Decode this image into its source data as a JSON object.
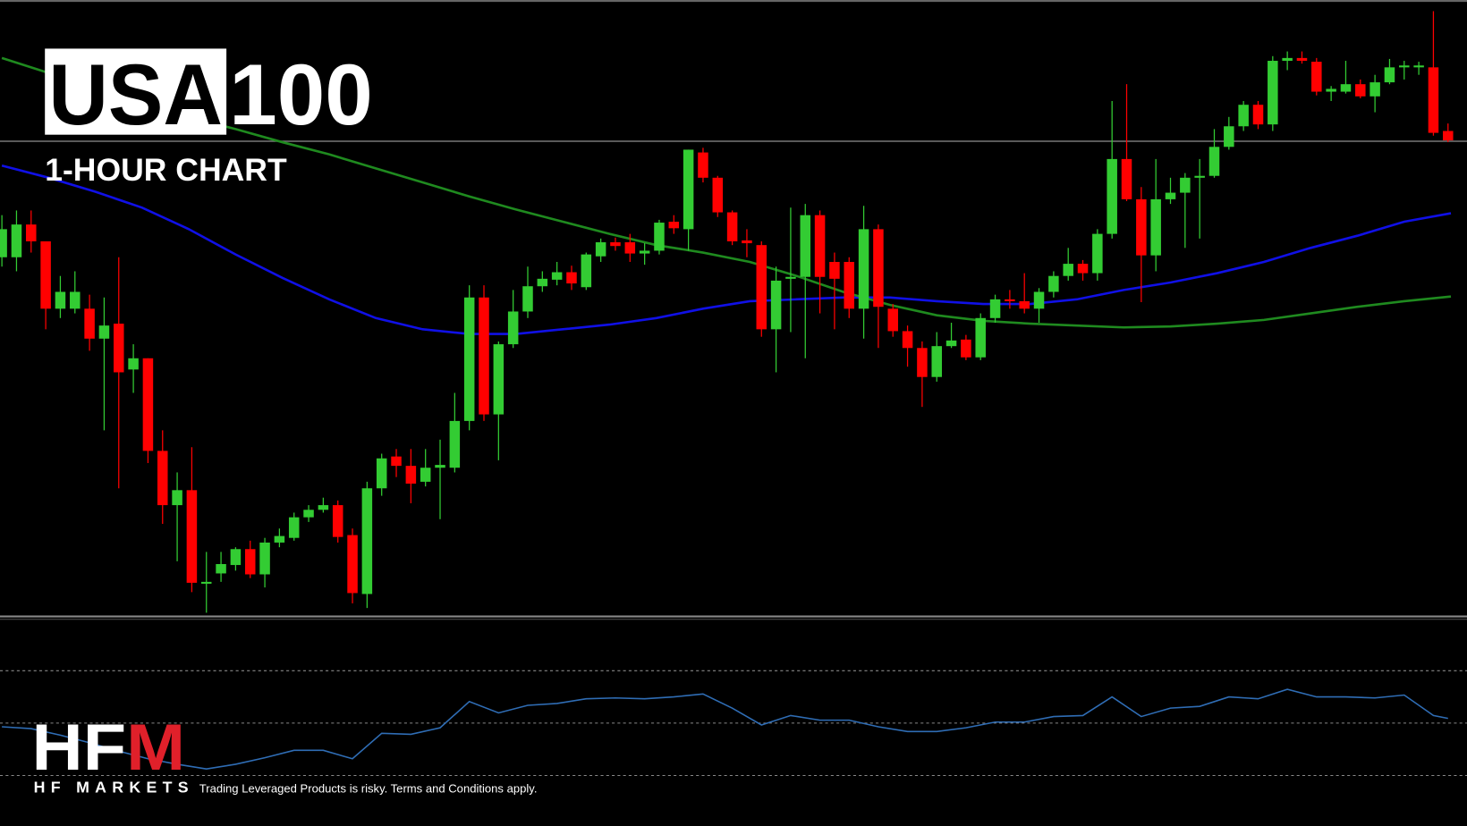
{
  "chart_data": [
    {
      "type": "candlestick",
      "title": "USA",
      "title_suffix": "100",
      "subtitle": "1-HOUR CHART",
      "xlim": [
        -0.13,
        100.3
      ],
      "ylim": [
        0,
        660
      ],
      "up_color": "#33cc33",
      "down_color": "#ff0000",
      "reference_line": 509,
      "reference_color": "#777777",
      "open": [
        385,
        385,
        420,
        402,
        330,
        330,
        330,
        298,
        314,
        265,
        277,
        178,
        120,
        136,
        36,
        47,
        56,
        73,
        46,
        80,
        85,
        107,
        115,
        120,
        88,
        25,
        138,
        172,
        162,
        145,
        160,
        160,
        210,
        342,
        217,
        292,
        327,
        354,
        361,
        369,
        353,
        386,
        401,
        401,
        389,
        392,
        423,
        415,
        497,
        470,
        433,
        403,
        398,
        308,
        362,
        364,
        430,
        380,
        380,
        330,
        415,
        330,
        306,
        288,
        257,
        290,
        297,
        278,
        320,
        340,
        338,
        330,
        348,
        365,
        378,
        368,
        410,
        490,
        447,
        387,
        447,
        454,
        470,
        472,
        503,
        525,
        548,
        527,
        595,
        598,
        594,
        562,
        562,
        570,
        557,
        572,
        588,
        588,
        588,
        520
      ],
      "high": [
        430,
        435,
        435,
        402,
        365,
        370,
        345,
        342,
        385,
        292,
        277,
        200,
        155,
        182,
        70,
        70,
        75,
        82,
        85,
        95,
        112,
        120,
        128,
        125,
        95,
        145,
        175,
        180,
        180,
        180,
        190,
        240,
        355,
        355,
        295,
        350,
        375,
        370,
        380,
        376,
        390,
        405,
        406,
        410,
        400,
        425,
        430,
        500,
        502,
        472,
        435,
        415,
        402,
        375,
        438,
        442,
        435,
        390,
        385,
        440,
        420,
        335,
        312,
        295,
        305,
        315,
        302,
        325,
        345,
        350,
        368,
        352,
        370,
        395,
        382,
        415,
        552,
        570,
        460,
        490,
        470,
        475,
        490,
        522,
        535,
        552,
        552,
        600,
        605,
        605,
        598,
        568,
        595,
        575,
        580,
        597,
        595,
        594,
        648,
        528
      ],
      "low": [
        375,
        370,
        390,
        308,
        320,
        325,
        285,
        200,
        138,
        240,
        165,
        100,
        60,
        27,
        5,
        38,
        50,
        42,
        32,
        75,
        82,
        102,
        112,
        80,
        15,
        10,
        130,
        150,
        122,
        140,
        105,
        155,
        200,
        210,
        168,
        288,
        320,
        348,
        355,
        350,
        350,
        380,
        392,
        380,
        377,
        388,
        410,
        392,
        465,
        428,
        398,
        385,
        300,
        262,
        305,
        277,
        325,
        308,
        320,
        298,
        288,
        300,
        268,
        225,
        252,
        288,
        275,
        275,
        315,
        330,
        325,
        315,
        342,
        360,
        360,
        360,
        405,
        445,
        337,
        370,
        442,
        395,
        405,
        470,
        500,
        520,
        522,
        520,
        585,
        592,
        558,
        552,
        560,
        555,
        540,
        570,
        575,
        580,
        515,
        508
      ],
      "close": [
        415,
        420,
        402,
        330,
        348,
        348,
        298,
        312,
        262,
        277,
        178,
        120,
        136,
        37,
        38,
        57,
        73,
        46,
        80,
        87,
        107,
        115,
        120,
        86,
        26,
        138,
        170,
        162,
        143,
        160,
        163,
        210,
        342,
        217,
        292,
        327,
        354,
        362,
        369,
        357,
        388,
        401,
        397,
        389,
        392,
        422,
        416,
        500,
        470,
        433,
        402,
        400,
        308,
        360,
        364,
        430,
        364,
        362,
        330,
        415,
        332,
        306,
        288,
        257,
        290,
        296,
        278,
        320,
        340,
        338,
        330,
        348,
        365,
        378,
        368,
        410,
        490,
        447,
        387,
        447,
        454,
        470,
        472,
        503,
        525,
        548,
        527,
        595,
        598,
        595,
        562,
        565,
        570,
        557,
        572,
        588,
        590,
        590,
        518,
        510
      ],
      "lines": [
        {
          "color": "#1010e6",
          "x": [
            0,
            3.2,
            6.4,
            9.6,
            12.8,
            16,
            19.2,
            22.4,
            25.6,
            28.8,
            32,
            35.2,
            38.4,
            41.6,
            44.8,
            48,
            51.2,
            54.4,
            57.6,
            60.8,
            64,
            67.2,
            70.4,
            73.6,
            76.8,
            80,
            83.2,
            86.4,
            89.6,
            92.8,
            96,
            99.2
          ],
          "values": [
            483,
            470,
            455,
            438,
            415,
            388,
            363,
            340,
            320,
            308,
            303,
            303,
            308,
            313,
            320,
            330,
            338,
            340,
            342,
            342,
            338,
            335,
            335,
            340,
            350,
            358,
            368,
            380,
            395,
            408,
            423,
            432
          ]
        },
        {
          "color": "#1f8a1f",
          "x": [
            0,
            3.2,
            6.4,
            9.6,
            12.8,
            16,
            19.2,
            22.4,
            25.6,
            28.8,
            32,
            35.2,
            38.4,
            41.6,
            44.8,
            48,
            51.2,
            54.4,
            57.6,
            60.8,
            64,
            67.2,
            70.4,
            73.6,
            76.8,
            80,
            83.2,
            86.4,
            89.6,
            92.8,
            96,
            99.2
          ],
          "values": [
            598,
            582,
            565,
            548,
            535,
            522,
            508,
            495,
            480,
            465,
            450,
            436,
            423,
            410,
            398,
            390,
            380,
            365,
            348,
            334,
            323,
            317,
            314,
            312,
            310,
            311,
            314,
            318,
            325,
            332,
            338,
            343
          ]
        }
      ]
    },
    {
      "type": "line",
      "xlim": [
        -0.13,
        100.3
      ],
      "ylim": [
        10,
        90
      ],
      "levels": [
        70,
        50,
        30
      ],
      "level_color": "#888888",
      "color": "#2f6db5",
      "x": [
        0,
        2,
        4,
        6,
        8,
        10,
        12,
        14,
        16,
        18,
        20,
        22,
        24,
        26,
        28,
        30,
        32,
        34,
        36,
        38,
        40,
        42,
        44,
        46,
        48,
        50,
        52,
        54,
        56,
        58,
        60,
        62,
        64,
        66,
        68,
        70,
        72,
        74,
        76,
        78,
        80,
        82,
        84,
        86,
        88,
        90,
        92,
        94,
        96,
        98,
        99
      ],
      "values": [
        48.6,
        47.9,
        45.4,
        42.5,
        39.3,
        36.4,
        34.3,
        32.5,
        34.3,
        36.8,
        39.6,
        39.6,
        36.4,
        46.1,
        45.7,
        48.2,
        58.2,
        53.9,
        56.8,
        57.5,
        59.3,
        59.6,
        59.3,
        60.0,
        61.1,
        55.7,
        49.3,
        52.9,
        51.1,
        51.1,
        48.6,
        46.8,
        46.8,
        48.2,
        50.4,
        50.4,
        52.5,
        52.9,
        60.0,
        52.5,
        55.7,
        56.4,
        60.0,
        59.3,
        62.9,
        60.0,
        60.0,
        59.6,
        60.7,
        52.9,
        51.8
      ]
    }
  ],
  "logo": "HFM",
  "brand": "HF MARKETS",
  "disclaimer": "Trading Leveraged Products is risky. Terms and Conditions apply."
}
